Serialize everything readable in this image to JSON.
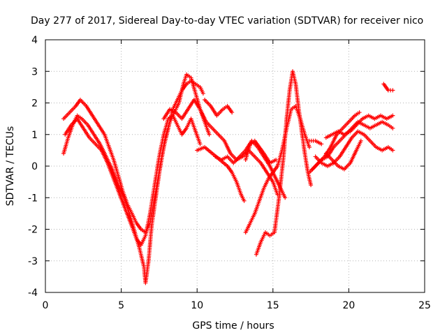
{
  "chart_data": {
    "type": "scatter",
    "title": "Day 277 of 2017, Sidereal Day-to-day VTEC variation (SDTVAR) for receiver nico",
    "xlabel": "GPS time / hours",
    "ylabel": "SDTVAR / TECUs",
    "xlim": [
      0,
      25
    ],
    "ylim": [
      -4,
      4
    ],
    "x_ticks": [
      0,
      5,
      10,
      15,
      20,
      25
    ],
    "y_ticks": [
      -4,
      -3,
      -2,
      -1,
      0,
      1,
      2,
      3,
      4
    ],
    "grid": true,
    "marker": "+",
    "color": "#ff0000",
    "series": [
      {
        "points": [
          [
            1.2,
            1.5
          ],
          [
            1.6,
            1.7
          ],
          [
            2.0,
            1.9
          ],
          [
            2.3,
            2.1
          ],
          [
            2.7,
            1.9
          ],
          [
            3.1,
            1.6
          ],
          [
            3.5,
            1.3
          ],
          [
            3.9,
            1.0
          ],
          [
            4.2,
            0.6
          ],
          [
            4.5,
            0.2
          ],
          [
            4.8,
            -0.3
          ],
          [
            5.1,
            -0.8
          ],
          [
            5.4,
            -1.2
          ],
          [
            5.7,
            -1.5
          ],
          [
            6.0,
            -1.8
          ],
          [
            6.3,
            -2.0
          ],
          [
            6.6,
            -2.1
          ],
          [
            6.9,
            -1.8
          ],
          [
            7.2,
            -1.0
          ],
          [
            7.5,
            -0.2
          ],
          [
            7.8,
            0.6
          ],
          [
            8.1,
            1.2
          ],
          [
            8.4,
            1.8
          ],
          [
            8.7,
            2.1
          ],
          [
            9.0,
            2.4
          ],
          [
            9.3,
            2.6
          ],
          [
            9.6,
            2.7
          ],
          [
            9.9,
            2.6
          ],
          [
            10.2,
            2.5
          ],
          [
            10.4,
            2.3
          ]
        ]
      },
      {
        "points": [
          [
            1.2,
            0.4
          ],
          [
            1.5,
            0.9
          ],
          [
            1.8,
            1.3
          ],
          [
            2.1,
            1.6
          ],
          [
            2.4,
            1.5
          ],
          [
            2.8,
            1.3
          ],
          [
            3.2,
            1.0
          ],
          [
            3.6,
            0.7
          ],
          [
            4.0,
            0.3
          ],
          [
            4.4,
            -0.1
          ],
          [
            4.8,
            -0.6
          ],
          [
            5.2,
            -1.0
          ],
          [
            5.6,
            -1.6
          ],
          [
            5.9,
            -2.1
          ],
          [
            6.2,
            -2.6
          ],
          [
            6.5,
            -3.2
          ],
          [
            6.6,
            -3.7
          ],
          [
            6.8,
            -3.0
          ],
          [
            7.0,
            -1.9
          ],
          [
            7.3,
            -0.9
          ],
          [
            7.6,
            0.1
          ],
          [
            7.9,
            0.9
          ],
          [
            8.2,
            1.4
          ],
          [
            8.5,
            1.7
          ],
          [
            8.8,
            2.0
          ],
          [
            9.1,
            2.6
          ],
          [
            9.3,
            2.9
          ],
          [
            9.6,
            2.8
          ],
          [
            9.9,
            2.3
          ],
          [
            10.2,
            1.8
          ],
          [
            10.5,
            1.4
          ],
          [
            10.8,
            1.0
          ]
        ]
      },
      {
        "points": [
          [
            1.3,
            1.0
          ],
          [
            1.7,
            1.3
          ],
          [
            2.1,
            1.5
          ],
          [
            2.5,
            1.2
          ],
          [
            2.9,
            0.9
          ],
          [
            3.3,
            0.7
          ],
          [
            3.7,
            0.5
          ],
          [
            4.1,
            0.1
          ],
          [
            4.5,
            -0.4
          ],
          [
            4.9,
            -0.9
          ],
          [
            5.3,
            -1.4
          ],
          [
            5.7,
            -1.9
          ],
          [
            6.0,
            -2.3
          ],
          [
            6.3,
            -2.5
          ],
          [
            6.6,
            -2.2
          ],
          [
            6.9,
            -1.5
          ],
          [
            7.2,
            -0.6
          ],
          [
            7.5,
            0.3
          ],
          [
            7.8,
            1.0
          ],
          [
            8.1,
            1.5
          ],
          [
            8.4,
            1.6
          ],
          [
            8.7,
            1.3
          ],
          [
            9.0,
            1.0
          ],
          [
            9.3,
            1.2
          ],
          [
            9.6,
            1.5
          ],
          [
            9.9,
            1.1
          ],
          [
            10.2,
            0.7
          ]
        ]
      },
      {
        "points": [
          [
            7.8,
            1.5
          ],
          [
            8.2,
            1.8
          ],
          [
            8.6,
            1.7
          ],
          [
            9.0,
            1.5
          ],
          [
            9.4,
            1.8
          ],
          [
            9.8,
            2.1
          ],
          [
            10.2,
            1.8
          ],
          [
            10.6,
            1.4
          ],
          [
            11.0,
            1.2
          ],
          [
            11.4,
            1.0
          ],
          [
            11.8,
            0.8
          ],
          [
            12.2,
            0.4
          ],
          [
            12.6,
            0.2
          ],
          [
            13.0,
            0.3
          ],
          [
            13.4,
            0.5
          ],
          [
            13.8,
            0.3
          ],
          [
            14.2,
            0.1
          ],
          [
            14.6,
            -0.2
          ],
          [
            15.0,
            -0.5
          ],
          [
            15.3,
            -0.9
          ]
        ]
      },
      {
        "points": [
          [
            10.5,
            2.1
          ],
          [
            10.9,
            1.9
          ],
          [
            11.3,
            1.6
          ],
          [
            11.7,
            1.8
          ],
          [
            12.0,
            1.9
          ],
          [
            12.3,
            1.7
          ]
        ]
      },
      {
        "points": [
          [
            10.0,
            0.5
          ],
          [
            10.5,
            0.6
          ],
          [
            11.0,
            0.4
          ],
          [
            11.5,
            0.2
          ],
          [
            12.0,
            0.0
          ],
          [
            12.3,
            -0.2
          ],
          [
            12.6,
            -0.5
          ],
          [
            12.9,
            -0.9
          ],
          [
            13.1,
            -1.1
          ]
        ]
      },
      {
        "points": [
          [
            11.2,
            0.3
          ],
          [
            11.6,
            0.2
          ],
          [
            12.0,
            0.3
          ],
          [
            12.4,
            0.1
          ],
          [
            12.8,
            0.3
          ],
          [
            13.2,
            0.5
          ],
          [
            13.6,
            0.8
          ],
          [
            14.0,
            0.6
          ],
          [
            14.4,
            0.3
          ],
          [
            14.8,
            0.0
          ],
          [
            15.2,
            -0.4
          ],
          [
            15.6,
            -0.8
          ],
          [
            15.8,
            -1.0
          ]
        ]
      },
      {
        "points": [
          [
            13.2,
            -2.1
          ],
          [
            13.5,
            -1.8
          ],
          [
            13.8,
            -1.5
          ],
          [
            14.1,
            -1.1
          ],
          [
            14.4,
            -0.7
          ],
          [
            14.7,
            -0.4
          ],
          [
            15.0,
            -0.2
          ],
          [
            15.3,
            0.0
          ],
          [
            15.6,
            0.5
          ],
          [
            15.9,
            1.2
          ],
          [
            16.2,
            1.8
          ],
          [
            16.5,
            1.9
          ],
          [
            16.8,
            1.5
          ],
          [
            17.1,
            1.0
          ],
          [
            17.4,
            0.6
          ]
        ]
      },
      {
        "points": [
          [
            13.9,
            -2.8
          ],
          [
            14.2,
            -2.4
          ],
          [
            14.5,
            -2.1
          ],
          [
            14.8,
            -2.2
          ],
          [
            15.1,
            -2.1
          ],
          [
            15.4,
            -1.0
          ],
          [
            15.7,
            0.3
          ],
          [
            15.9,
            1.5
          ],
          [
            16.1,
            2.4
          ],
          [
            16.3,
            3.0
          ],
          [
            16.5,
            2.6
          ],
          [
            16.7,
            1.8
          ],
          [
            16.9,
            1.1
          ],
          [
            17.1,
            0.4
          ],
          [
            17.3,
            -0.2
          ],
          [
            17.5,
            -0.6
          ]
        ]
      },
      {
        "points": [
          [
            13.2,
            0.2
          ],
          [
            13.5,
            0.7
          ],
          [
            13.8,
            0.8
          ],
          [
            14.1,
            0.6
          ],
          [
            14.4,
            0.4
          ],
          [
            14.8,
            0.1
          ],
          [
            15.2,
            0.2
          ]
        ]
      },
      {
        "points": [
          [
            17.4,
            0.8
          ],
          [
            17.8,
            0.8
          ],
          [
            18.2,
            0.7
          ]
        ]
      },
      {
        "points": [
          [
            17.4,
            -0.2
          ],
          [
            17.8,
            0.0
          ],
          [
            18.2,
            0.2
          ],
          [
            18.6,
            0.3
          ],
          [
            19.0,
            0.6
          ],
          [
            19.4,
            0.8
          ],
          [
            19.8,
            1.0
          ],
          [
            20.2,
            1.2
          ],
          [
            20.6,
            1.4
          ],
          [
            21.0,
            1.3
          ],
          [
            21.4,
            1.2
          ],
          [
            21.8,
            1.3
          ],
          [
            22.2,
            1.4
          ],
          [
            22.6,
            1.3
          ],
          [
            22.9,
            1.2
          ]
        ]
      },
      {
        "points": [
          [
            17.6,
            -0.1
          ],
          [
            18.0,
            0.1
          ],
          [
            18.4,
            0.3
          ],
          [
            18.8,
            0.6
          ],
          [
            19.2,
            1.0
          ],
          [
            19.6,
            1.2
          ],
          [
            20.0,
            1.4
          ],
          [
            20.4,
            1.6
          ],
          [
            20.7,
            1.7
          ]
        ]
      },
      {
        "points": [
          [
            17.8,
            0.3
          ],
          [
            18.2,
            0.1
          ],
          [
            18.6,
            0.0
          ],
          [
            19.0,
            0.1
          ],
          [
            19.4,
            0.3
          ],
          [
            19.8,
            0.6
          ],
          [
            20.2,
            0.9
          ],
          [
            20.6,
            1.1
          ],
          [
            21.0,
            1.0
          ],
          [
            21.4,
            0.8
          ],
          [
            21.8,
            0.6
          ],
          [
            22.2,
            0.5
          ],
          [
            22.6,
            0.6
          ],
          [
            22.9,
            0.5
          ]
        ]
      },
      {
        "points": [
          [
            18.5,
            0.9
          ],
          [
            18.9,
            1.0
          ],
          [
            19.3,
            1.1
          ],
          [
            19.7,
            1.0
          ],
          [
            20.1,
            1.1
          ],
          [
            20.5,
            1.3
          ],
          [
            20.9,
            1.5
          ],
          [
            21.3,
            1.6
          ],
          [
            21.7,
            1.5
          ],
          [
            22.1,
            1.6
          ],
          [
            22.5,
            1.5
          ],
          [
            22.9,
            1.6
          ]
        ]
      },
      {
        "points": [
          [
            18.5,
            0.4
          ],
          [
            18.9,
            0.2
          ],
          [
            19.3,
            0.0
          ],
          [
            19.7,
            -0.1
          ],
          [
            20.1,
            0.1
          ],
          [
            20.5,
            0.5
          ],
          [
            20.8,
            0.8
          ]
        ]
      },
      {
        "points": [
          [
            22.3,
            2.6
          ],
          [
            22.6,
            2.4
          ],
          [
            22.9,
            2.4
          ]
        ]
      }
    ]
  }
}
